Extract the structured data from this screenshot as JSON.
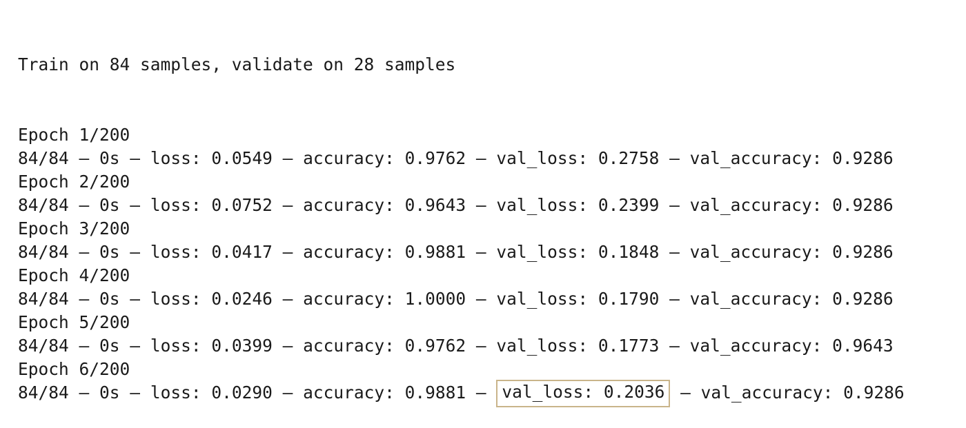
{
  "header": "Train on 84 samples, validate on 28 samples",
  "epochs": [
    {
      "epoch_label": "Epoch 1/200",
      "progress": "84/84",
      "time": "0s",
      "loss": "loss: 0.0549",
      "accuracy": "accuracy: 0.9762",
      "val_loss": "val_loss: 0.2758",
      "val_accuracy": "val_accuracy: 0.9286"
    },
    {
      "epoch_label": "Epoch 2/200",
      "progress": "84/84",
      "time": "0s",
      "loss": "loss: 0.0752",
      "accuracy": "accuracy: 0.9643",
      "val_loss": "val_loss: 0.2399",
      "val_accuracy": "val_accuracy: 0.9286"
    },
    {
      "epoch_label": "Epoch 3/200",
      "progress": "84/84",
      "time": "0s",
      "loss": "loss: 0.0417",
      "accuracy": "accuracy: 0.9881",
      "val_loss": "val_loss: 0.1848",
      "val_accuracy": "val_accuracy: 0.9286"
    },
    {
      "epoch_label": "Epoch 4/200",
      "progress": "84/84",
      "time": "0s",
      "loss": "loss: 0.0246",
      "accuracy": "accuracy: 1.0000",
      "val_loss": "val_loss: 0.1790",
      "val_accuracy": "val_accuracy: 0.9286"
    },
    {
      "epoch_label": "Epoch 5/200",
      "progress": "84/84",
      "time": "0s",
      "loss": "loss: 0.0399",
      "accuracy": "accuracy: 0.9762",
      "val_loss": "val_loss: 0.1773",
      "val_accuracy": "val_accuracy: 0.9643"
    },
    {
      "epoch_label": "Epoch 6/200",
      "progress": "84/84",
      "time": "0s",
      "loss": "loss: 0.0290",
      "accuracy": "accuracy: 0.9881",
      "val_loss": "val_loss: 0.2036",
      "val_accuracy": "val_accuracy: 0.9286"
    }
  ],
  "separator": " – ",
  "highlight": {
    "epoch_index": 5,
    "field": "val_loss",
    "border_color": "#c9b48a"
  },
  "colors": {
    "text": "#1a1a1a",
    "background": "#ffffff"
  }
}
